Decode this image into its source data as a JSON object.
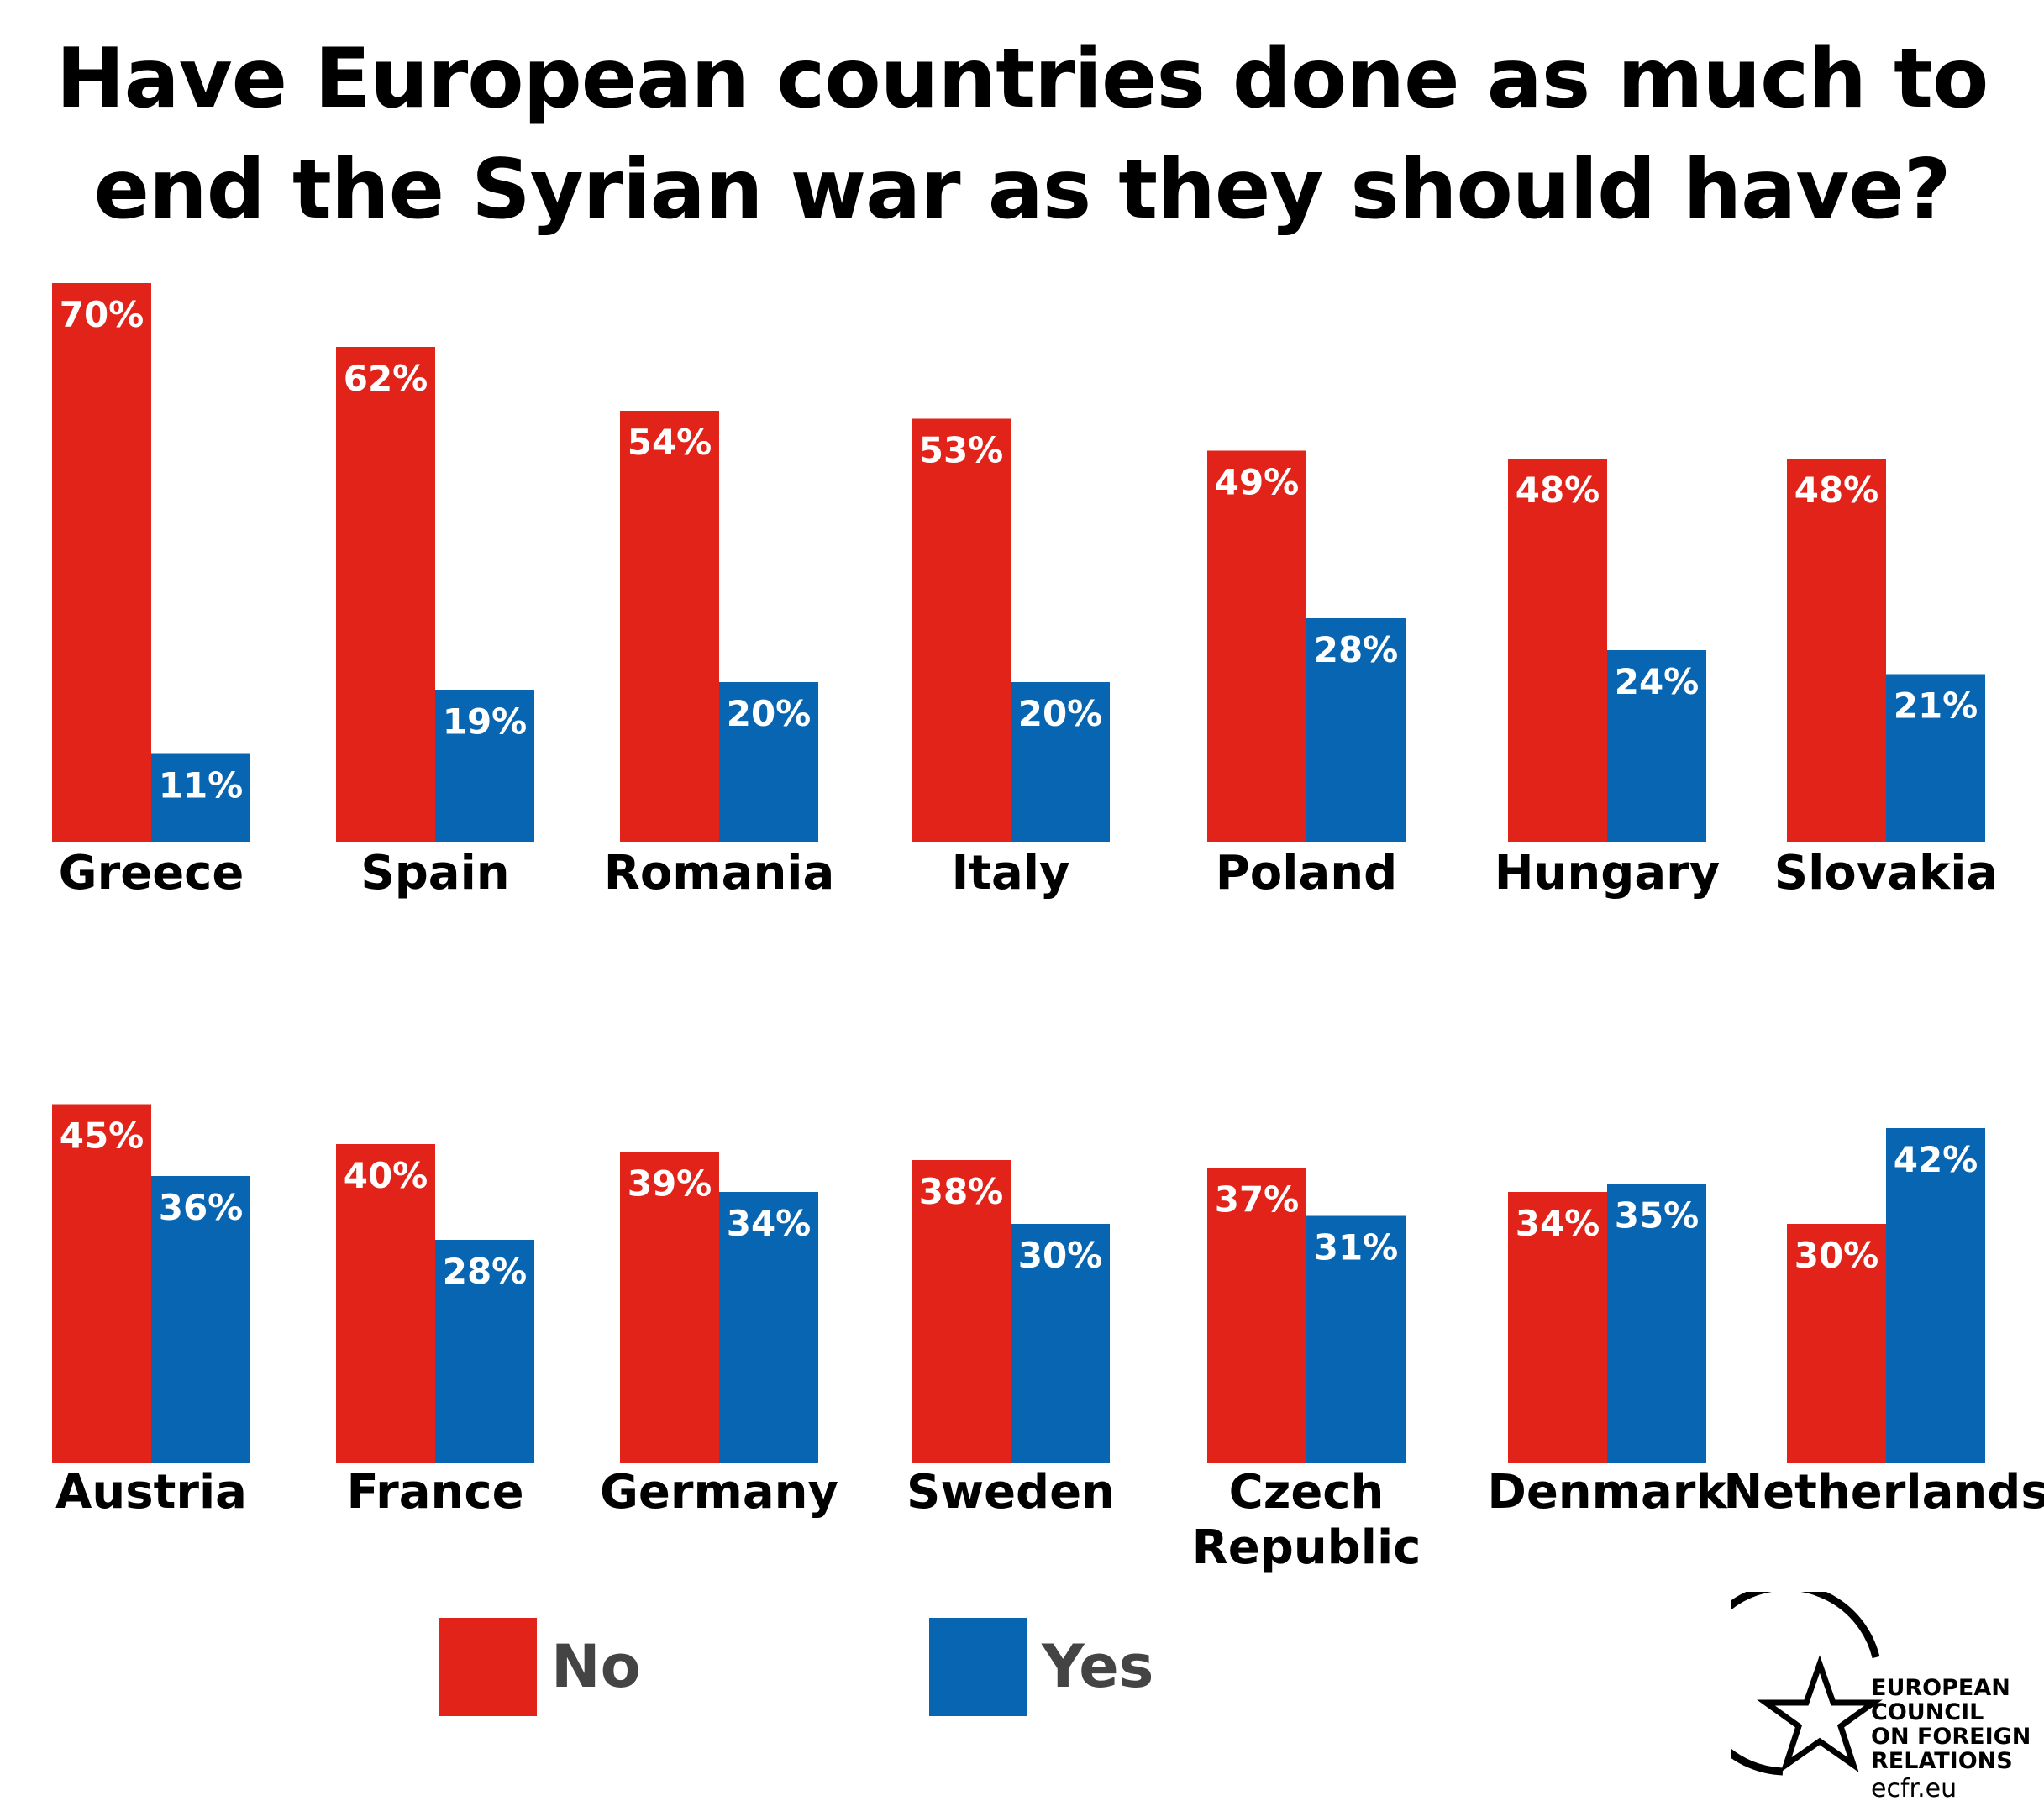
{
  "title_lines": [
    "Have European countries done as much to",
    "end the Syrian war as they should have?"
  ],
  "colors": {
    "no": "#e2231a",
    "yes": "#0865b1",
    "legend_text": "#444444"
  },
  "legend": [
    {
      "label": "No",
      "color": "#e2231a"
    },
    {
      "label": "Yes",
      "color": "#0865b1"
    }
  ],
  "logo": {
    "lines": [
      "EUROPEAN",
      "COUNCIL",
      "ON FOREIGN",
      "RELATIONS"
    ],
    "url": "ecfr.eu",
    "icon": "star-in-circle-icon"
  },
  "chart_data": [
    {
      "type": "bar",
      "title": "Have European countries done as much to end the Syrian war as they should have?",
      "categories": [
        "Greece",
        "Spain",
        "Romania",
        "Italy",
        "Poland",
        "Hungary",
        "Slovakia"
      ],
      "series": [
        {
          "name": "No",
          "values": [
            70,
            62,
            54,
            53,
            49,
            48,
            48
          ]
        },
        {
          "name": "Yes",
          "values": [
            11,
            19,
            20,
            20,
            28,
            24,
            21
          ]
        }
      ],
      "value_format": "{v}%",
      "ylim": [
        0,
        70
      ],
      "grid": false,
      "legend_position": "bottom"
    },
    {
      "type": "bar",
      "categories": [
        "Austria",
        "France",
        "Germany",
        "Sweden",
        "Czech Republic",
        "Denmark",
        "Netherlands"
      ],
      "category_lines": [
        [
          "Austria"
        ],
        [
          "France"
        ],
        [
          "Germany"
        ],
        [
          "Sweden"
        ],
        [
          "Czech",
          "Republic"
        ],
        [
          "Denmark"
        ],
        [
          "Netherlands"
        ]
      ],
      "series": [
        {
          "name": "No",
          "values": [
            45,
            40,
            39,
            38,
            37,
            34,
            30
          ]
        },
        {
          "name": "Yes",
          "values": [
            36,
            28,
            34,
            30,
            31,
            35,
            42
          ]
        }
      ],
      "value_format": "{v}%",
      "ylim": [
        0,
        45
      ],
      "grid": false,
      "legend_position": "bottom"
    }
  ]
}
